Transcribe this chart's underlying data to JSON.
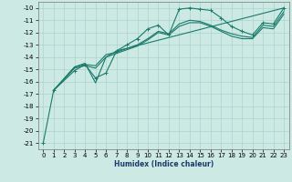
{
  "title": "",
  "xlabel": "Humidex (Indice chaleur)",
  "ylabel": "",
  "bg_color": "#cce9e4",
  "grid_color": "#aad4cc",
  "line_color": "#1a7a6a",
  "xlim": [
    -0.5,
    23.5
  ],
  "ylim": [
    -21.5,
    -9.5
  ],
  "xticks": [
    0,
    1,
    2,
    3,
    4,
    5,
    6,
    7,
    8,
    9,
    10,
    11,
    12,
    13,
    14,
    15,
    16,
    17,
    18,
    19,
    20,
    21,
    22,
    23
  ],
  "yticks": [
    -21,
    -20,
    -19,
    -18,
    -17,
    -16,
    -15,
    -14,
    -13,
    -12,
    -11,
    -10
  ],
  "line1_x": [
    0,
    1,
    3,
    4,
    5,
    6,
    7,
    8,
    9,
    10,
    11,
    12,
    13,
    14,
    15,
    16,
    17,
    18,
    19,
    20,
    21,
    22,
    23
  ],
  "line1_y": [
    -21.0,
    -16.7,
    -15.1,
    -14.6,
    -15.7,
    -15.3,
    -13.5,
    -13.0,
    -12.5,
    -11.7,
    -11.4,
    -12.2,
    -10.1,
    -10.0,
    -10.1,
    -10.2,
    -10.8,
    -11.5,
    -11.9,
    -12.2,
    -11.2,
    -11.3,
    -10.0
  ],
  "line2_x": [
    1,
    3,
    4,
    5,
    6,
    7,
    8,
    9,
    10,
    11,
    12,
    13,
    14,
    15,
    16,
    17,
    18,
    19,
    20,
    21,
    22,
    23
  ],
  "line2_y": [
    -16.7,
    -14.8,
    -14.6,
    -14.7,
    -13.8,
    -13.6,
    -13.3,
    -13.0,
    -12.5,
    -11.9,
    -12.1,
    -11.3,
    -11.0,
    -11.1,
    -11.4,
    -11.8,
    -12.1,
    -12.3,
    -12.4,
    -11.4,
    -11.5,
    -10.3
  ],
  "line3_x": [
    1,
    3,
    4,
    5,
    6,
    7,
    8,
    9,
    10,
    11,
    12,
    13,
    14,
    15,
    16,
    17,
    18,
    19,
    20,
    21,
    22,
    23
  ],
  "line3_y": [
    -16.7,
    -14.9,
    -14.7,
    -14.9,
    -14.0,
    -13.7,
    -13.4,
    -13.1,
    -12.6,
    -12.0,
    -12.2,
    -11.5,
    -11.2,
    -11.2,
    -11.5,
    -11.9,
    -12.3,
    -12.5,
    -12.5,
    -11.6,
    -11.7,
    -10.5
  ],
  "line4_x": [
    1,
    3,
    4,
    5,
    6,
    7,
    23
  ],
  "line4_y": [
    -16.7,
    -14.8,
    -14.5,
    -16.1,
    -14.0,
    -13.5,
    -10.0
  ]
}
